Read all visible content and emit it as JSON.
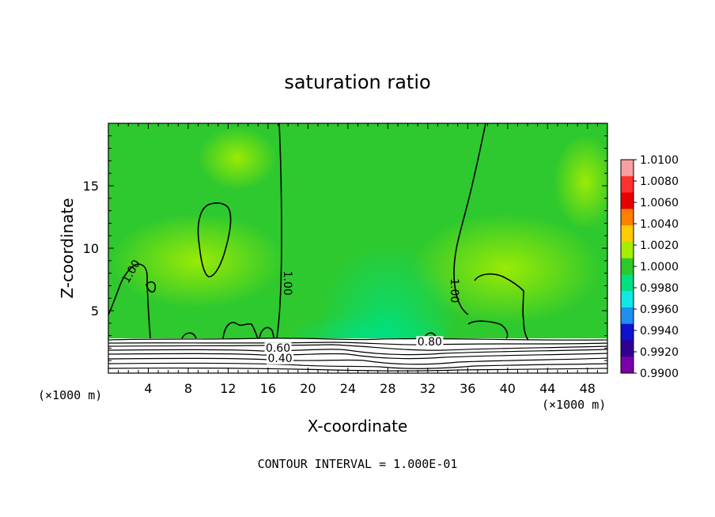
{
  "chart_data": {
    "type": "heatmap",
    "title": "saturation ratio",
    "xlabel": "X-coordinate",
    "ylabel": "Z-coordinate",
    "x_unit_left": "(×1000 m)",
    "x_unit_right": "(×1000 m)",
    "xlim": [
      0,
      50
    ],
    "ylim": [
      0,
      20
    ],
    "x_ticks": [
      4,
      8,
      12,
      16,
      20,
      24,
      28,
      32,
      36,
      40,
      44,
      48
    ],
    "y_ticks": [
      5,
      10,
      15
    ],
    "footer": "CONTOUR INTERVAL = 1.000E-01",
    "colorbar": {
      "labels": [
        "1.0100",
        "1.0080",
        "1.0060",
        "1.0040",
        "1.0020",
        "1.0000",
        "0.9980",
        "0.9960",
        "0.9940",
        "0.9920",
        "0.9900"
      ],
      "colors": [
        "#f6a0a0",
        "#ff3030",
        "#e80000",
        "#ff8000",
        "#ffcc00",
        "#a6ee00",
        "#2ec92e",
        "#00e080",
        "#10e8e8",
        "#1f8ff0",
        "#1010d0",
        "#300090",
        "#7a00a8"
      ]
    },
    "contour_labels": [
      {
        "text": "1.00",
        "x": 2.6,
        "z": 8.0
      },
      {
        "text": "1.00",
        "x": 17.6,
        "z": 7.2
      },
      {
        "text": "1.00",
        "x": 34.3,
        "z": 6.6
      },
      {
        "text": "0.60",
        "x": 17.0,
        "z": 1.7
      },
      {
        "text": "0.40",
        "x": 17.2,
        "z": 0.9
      },
      {
        "text": "0.80",
        "x": 32.2,
        "z": 2.2
      }
    ],
    "colors": {
      "background": "#2ec92e",
      "light_green": "#a6ee00"
    }
  }
}
